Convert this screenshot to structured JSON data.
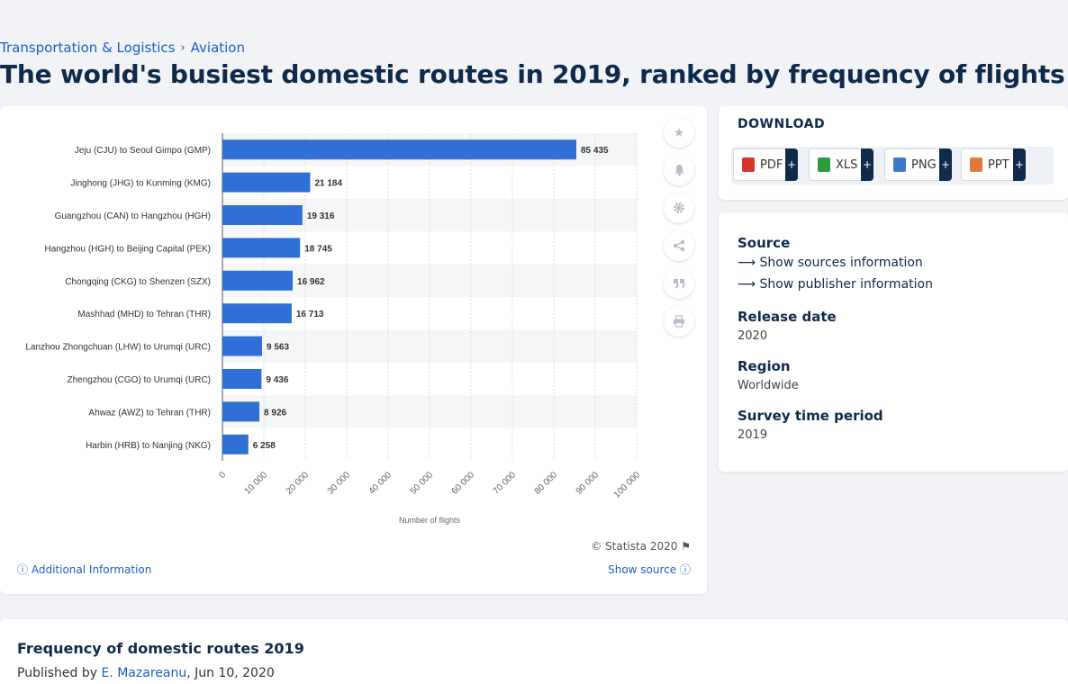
{
  "breadcrumb": {
    "items": [
      "Transportation & Logistics",
      "Aviation"
    ],
    "separator": "›"
  },
  "page_title": "The world's busiest domestic routes in 2019, ranked by frequency of flights",
  "chart_data": {
    "type": "bar",
    "orientation": "horizontal",
    "categories": [
      "Jeju (CJU) to Seoul Gimpo (GMP)",
      "Jinghong (JHG) to Kunming (KMG)",
      "Guangzhou (CAN) to Hangzhou (HGH)",
      "Hangzhou (HGH) to Beijing Capital (PEK)",
      "Chongqing (CKG) to Shenzen (SZX)",
      "Mashhad (MHD) to Tehran (THR)",
      "Lanzhou Zhongchuan (LHW) to Urumqi (URC)",
      "Zhengzhou (CGO) to Urumqi (URC)",
      "Ahwaz (AWZ) to Tehran (THR)",
      "Harbin (HRB) to Nanjing (NKG)"
    ],
    "values": [
      85435,
      21184,
      19316,
      18745,
      16962,
      16713,
      9563,
      9436,
      8926,
      6258
    ],
    "value_labels": [
      "85 435",
      "21 184",
      "19 316",
      "18 745",
      "16 962",
      "16 713",
      "9 563",
      "9 436",
      "8 926",
      "6 258"
    ],
    "xlabel": "Number of flights",
    "ylabel": "",
    "xlim": [
      0,
      100000
    ],
    "ticks": [
      "0",
      "10 000",
      "20 000",
      "30 000",
      "40 000",
      "50 000",
      "60 000",
      "70 000",
      "80 000",
      "90 000",
      "100 000"
    ],
    "grid": true,
    "bar_color": "#2f6fd6"
  },
  "chart_tools": [
    "star-icon",
    "bell-icon",
    "gear-icon",
    "share-icon",
    "quote-icon",
    "print-icon"
  ],
  "chart_footer": {
    "credit": "© Statista 2020",
    "additional_info": "Additional Information",
    "show_source": "Show source"
  },
  "download": {
    "title": "DOWNLOAD",
    "buttons": [
      {
        "label": "PDF",
        "color": "#d9342b"
      },
      {
        "label": "XLS",
        "color": "#2e9b3e"
      },
      {
        "label": "PNG",
        "color": "#3b79c9"
      },
      {
        "label": "PPT",
        "color": "#e2793a"
      }
    ],
    "plus": "+"
  },
  "info": {
    "source_heading": "Source",
    "show_sources": "Show sources information",
    "show_publisher": "Show publisher information",
    "release_heading": "Release date",
    "release_value": "2020",
    "region_heading": "Region",
    "region_value": "Worldwide",
    "survey_heading": "Survey time period",
    "survey_value": "2019"
  },
  "bottom": {
    "title": "Frequency of domestic routes 2019",
    "published_by": "Published by",
    "author": "E. Mazareanu",
    "date": ", Jun 10, 2020"
  }
}
